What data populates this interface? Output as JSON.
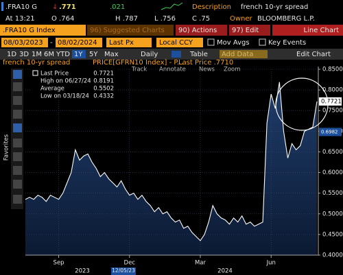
{
  "header": {
    "ticker": ".FRA10 G",
    "direction": "↓",
    "last": ".771",
    "change": ".021",
    "description_label": "Description",
    "description": "french 10-yr spread",
    "time": "At 13:21",
    "open": "O .764",
    "high": "H .787",
    "low": "L .756",
    "close": "C .75",
    "owner_label": "Owner",
    "owner": "BLOOMBERG L.P."
  },
  "toolbar": {
    "security": ".FRA10 G Index",
    "suggested": "96) Suggested Charts",
    "actions": "90) Actions",
    "edit": "97) Edit",
    "chart_type": "Line Chart"
  },
  "range": {
    "start": "08/03/2023",
    "dash": "-",
    "end": "08/02/2024",
    "field": "Last Px",
    "currency": "Local CCY",
    "mov_avgs": "Mov Avgs",
    "key_events": "Key Events"
  },
  "controls": {
    "periods": [
      "1D",
      "3D",
      "1M",
      "6M",
      "YTD",
      "1Y",
      "5Y",
      "Max"
    ],
    "selected_period": "1Y",
    "frequency": "Daily",
    "table": "Table",
    "add_data": "Add Data",
    "edit_chart": "Edit Chart"
  },
  "series_info": {
    "title": "french 10-yr spread",
    "description": "PRICE[GFRN10 Index] - P...",
    "last": "Last Price .7710"
  },
  "chart_tools": [
    "Track",
    "Annotate",
    "News",
    "Zoom"
  ],
  "sidebar_label": "Favorites",
  "chart_data": {
    "type": "area",
    "categories": [
      null,
      null,
      null,
      null,
      null,
      null,
      null,
      null,
      "Sep",
      null,
      null,
      null,
      null,
      null,
      null,
      null,
      null,
      null,
      null,
      null,
      null,
      null,
      null,
      null,
      null,
      "Dec",
      null,
      null,
      null,
      null,
      null,
      null,
      null,
      null,
      null,
      null,
      null,
      null,
      null,
      null,
      null,
      null,
      "Mar",
      null,
      null,
      null,
      null,
      null,
      null,
      null,
      null,
      null,
      null,
      null,
      null,
      null,
      null,
      null,
      null,
      "Jun",
      null,
      null,
      null,
      null,
      null,
      null,
      null,
      null,
      null,
      null,
      null
    ],
    "series": [
      {
        "name": "Last Price",
        "color": "#ffffff",
        "values": [
          0.535,
          0.54,
          0.535,
          0.545,
          0.54,
          0.53,
          0.545,
          0.54,
          0.535,
          0.55,
          0.575,
          0.6,
          0.655,
          0.63,
          0.64,
          0.645,
          0.625,
          0.61,
          0.59,
          0.6,
          0.585,
          0.575,
          0.565,
          0.58,
          0.56,
          0.545,
          0.55,
          0.535,
          0.545,
          0.53,
          0.52,
          0.505,
          0.515,
          0.5,
          0.505,
          0.49,
          0.48,
          0.485,
          0.465,
          0.47,
          0.455,
          0.445,
          0.435,
          0.45,
          0.48,
          0.52,
          0.5,
          0.49,
          0.485,
          0.475,
          0.49,
          0.48,
          0.495,
          0.475,
          0.48,
          0.47,
          0.475,
          0.48,
          0.72,
          0.79,
          0.755,
          0.819,
          0.7,
          0.635,
          0.67,
          0.655,
          0.665,
          0.7,
          0.705,
          0.71,
          0.772
        ]
      }
    ],
    "last_value": 0.7721,
    "stats": [
      {
        "label": "High on 06/27/24",
        "value": 0.8191
      },
      {
        "label": "Average",
        "value": 0.5502
      },
      {
        "label": "Low on 03/18/24",
        "value": 0.4332
      }
    ],
    "price_tags": [
      0.7721,
      0.6982
    ],
    "years": [
      "2023",
      "2024"
    ],
    "cursor_date": "12/05/23",
    "ylim": [
      0.4,
      0.85
    ],
    "yticks": [
      {
        "value": 0.4,
        "label": "0.4000"
      },
      {
        "value": 0.45,
        "label": "0.4500"
      },
      {
        "value": 0.5,
        "label": "0.5000"
      },
      {
        "value": 0.55,
        "label": "0.5500"
      },
      {
        "value": 0.6,
        "label": "0.6000"
      },
      {
        "value": 0.65,
        "label": "0.6500"
      },
      {
        "value": 0.7,
        "label": "0.7000"
      },
      {
        "value": 0.75,
        "label": "0.7500"
      },
      {
        "value": 0.8,
        "label": "0.8000"
      },
      {
        "value": 0.85,
        "label": "0.8500"
      }
    ],
    "grid": true
  }
}
